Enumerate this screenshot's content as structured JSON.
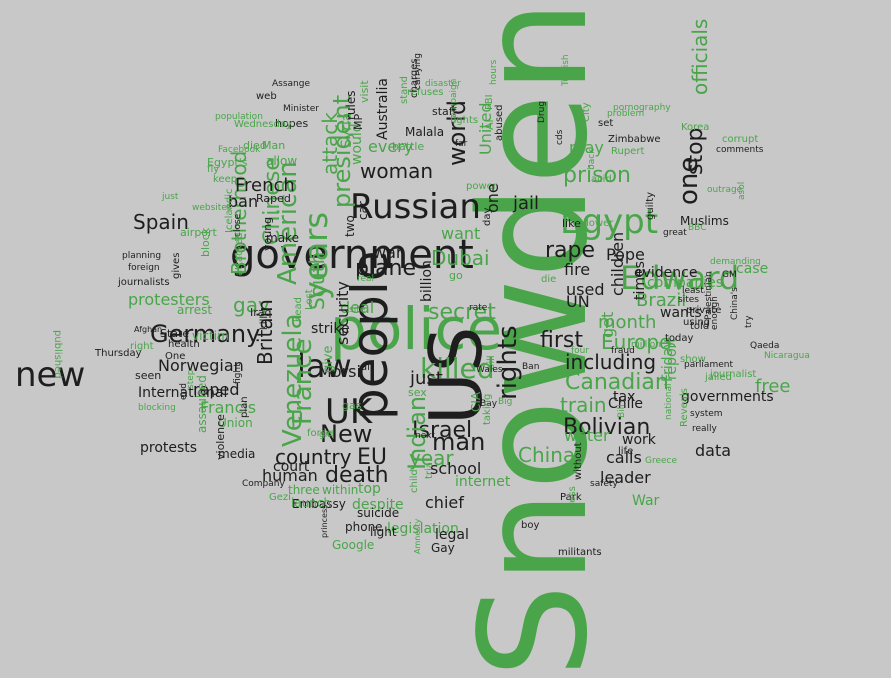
{
  "palette": {
    "background": "#c8c8c8",
    "dark": "#1e1e1e",
    "green": "#4aa54a"
  },
  "words": [
    {
      "t": "Snowden",
      "c": "g"
    },
    {
      "t": "police",
      "c": "g"
    },
    {
      "t": "US",
      "c": "d"
    },
    {
      "t": "people",
      "c": "d"
    },
    {
      "t": "government",
      "c": "d"
    },
    {
      "t": "Edward",
      "c": "g"
    },
    {
      "t": "Egypt",
      "c": "g"
    },
    {
      "t": "Russian",
      "c": "d"
    },
    {
      "t": "new",
      "c": "d"
    },
    {
      "t": "UK",
      "c": "d"
    },
    {
      "t": "years",
      "c": "g"
    },
    {
      "t": "law",
      "c": "d"
    },
    {
      "t": "killed",
      "c": "g"
    },
    {
      "t": "rights",
      "c": "d"
    },
    {
      "t": "Germany",
      "c": "d"
    },
    {
      "t": "New",
      "c": "d"
    },
    {
      "t": "man",
      "c": "d"
    },
    {
      "t": "Israel",
      "c": "d"
    },
    {
      "t": "France",
      "c": "g"
    },
    {
      "t": "American",
      "c": "g"
    },
    {
      "t": "Venezuela",
      "c": "g"
    },
    {
      "t": "Bolivian",
      "c": "d"
    },
    {
      "t": "Canadian",
      "c": "g"
    },
    {
      "t": "prison",
      "c": "g"
    },
    {
      "t": "one",
      "c": "d"
    },
    {
      "t": "China",
      "c": "g"
    },
    {
      "t": "including",
      "c": "d"
    },
    {
      "t": "secret",
      "c": "g"
    },
    {
      "t": "president",
      "c": "g"
    },
    {
      "t": "world",
      "c": "d"
    },
    {
      "t": "woman",
      "c": "d"
    },
    {
      "t": "plane",
      "c": "d"
    },
    {
      "t": "rape",
      "c": "d"
    },
    {
      "t": "first",
      "c": "d"
    },
    {
      "t": "officials",
      "c": "g"
    },
    {
      "t": "death",
      "c": "d"
    },
    {
      "t": "EU",
      "c": "d"
    },
    {
      "t": "country",
      "c": "d"
    },
    {
      "t": "train",
      "c": "g"
    },
    {
      "t": "Europe",
      "c": "g"
    },
    {
      "t": "Dubai",
      "c": "g"
    },
    {
      "t": "gay",
      "c": "g"
    },
    {
      "t": "Brotherhood",
      "c": "g"
    },
    {
      "t": "Indian",
      "c": "g"
    },
    {
      "t": "stop",
      "c": "d"
    },
    {
      "t": "jail",
      "c": "d"
    },
    {
      "t": "Chinese",
      "c": "g"
    },
    {
      "t": "Spain",
      "c": "d"
    },
    {
      "t": "French",
      "c": "d"
    },
    {
      "t": "year",
      "c": "g"
    },
    {
      "t": "month",
      "c": "g"
    },
    {
      "t": "just",
      "c": "d"
    },
    {
      "t": "Brazil",
      "c": "g"
    },
    {
      "t": "free",
      "c": "g"
    },
    {
      "t": "data",
      "c": "d"
    },
    {
      "t": "leader",
      "c": "d"
    },
    {
      "t": "protesters",
      "c": "g"
    },
    {
      "t": "Norwegian",
      "c": "d"
    },
    {
      "t": "South",
      "c": "g"
    },
    {
      "t": "Britain",
      "c": "d"
    },
    {
      "t": "Morsi",
      "c": "d"
    },
    {
      "t": "school",
      "c": "d"
    },
    {
      "t": "UN",
      "c": "d"
    },
    {
      "t": "fire",
      "c": "d"
    },
    {
      "t": "used",
      "c": "d"
    },
    {
      "t": "Pope",
      "c": "d"
    },
    {
      "t": "water",
      "c": "g"
    },
    {
      "t": "calls",
      "c": "d"
    },
    {
      "t": "War",
      "c": "g"
    },
    {
      "t": "chief",
      "c": "d"
    },
    {
      "t": "internet",
      "c": "g"
    },
    {
      "t": "human",
      "c": "d"
    },
    {
      "t": "deal",
      "c": "g"
    },
    {
      "t": "war",
      "c": "d"
    },
    {
      "t": "attack",
      "c": "g"
    },
    {
      "t": "security",
      "c": "d"
    },
    {
      "t": "every",
      "c": "g"
    },
    {
      "t": "may",
      "c": "g"
    },
    {
      "t": "United",
      "c": "g"
    },
    {
      "t": "billion",
      "c": "d"
    },
    {
      "t": "want",
      "c": "g"
    },
    {
      "t": "get",
      "c": "g"
    },
    {
      "t": "Francis",
      "c": "g"
    },
    {
      "t": "raped",
      "c": "d"
    },
    {
      "t": "ban",
      "c": "d"
    },
    {
      "t": "strike",
      "c": "d"
    },
    {
      "t": "top",
      "c": "g"
    },
    {
      "t": "times",
      "c": "d"
    },
    {
      "t": "children",
      "c": "d"
    },
    {
      "t": "legislation",
      "c": "g"
    },
    {
      "t": "report",
      "c": "g"
    },
    {
      "t": "would",
      "c": "g"
    },
    {
      "t": "Australia",
      "c": "d"
    },
    {
      "t": "Syria",
      "c": "g"
    },
    {
      "t": "court",
      "c": "d"
    },
    {
      "t": "wants",
      "c": "d"
    },
    {
      "t": "companies",
      "c": "g"
    },
    {
      "t": "tax",
      "c": "d"
    },
    {
      "t": "work",
      "c": "d"
    },
    {
      "t": "Friday",
      "c": "g"
    },
    {
      "t": "evidence",
      "c": "d"
    },
    {
      "t": "case",
      "c": "g"
    },
    {
      "t": "governments",
      "c": "d"
    },
    {
      "t": "Muslims",
      "c": "d"
    },
    {
      "t": "Chile",
      "c": "d"
    },
    {
      "t": "protests",
      "c": "d"
    },
    {
      "t": "International",
      "c": "d"
    },
    {
      "t": "media",
      "c": "d"
    },
    {
      "t": "legal",
      "c": "d"
    },
    {
      "t": "despite",
      "c": "g"
    },
    {
      "t": "within",
      "c": "g"
    },
    {
      "t": "three",
      "c": "g"
    },
    {
      "t": "Embassy",
      "c": "d"
    },
    {
      "t": "launch",
      "c": "g"
    },
    {
      "t": "Gay",
      "c": "d"
    },
    {
      "t": "phone",
      "c": "d"
    },
    {
      "t": "suicide",
      "c": "d"
    },
    {
      "t": "Google",
      "c": "g"
    },
    {
      "t": "light",
      "c": "d"
    },
    {
      "t": "boy",
      "c": "d"
    },
    {
      "t": "militants",
      "c": "d"
    },
    {
      "t": "Park",
      "c": "d"
    },
    {
      "t": "without",
      "c": "d"
    },
    {
      "t": "safety",
      "c": "d"
    },
    {
      "t": "Greece",
      "c": "g"
    },
    {
      "t": "life",
      "c": "d"
    },
    {
      "t": "arrest",
      "c": "g"
    },
    {
      "t": "victim",
      "c": "g"
    },
    {
      "t": "State",
      "c": "d"
    },
    {
      "t": "health",
      "c": "d"
    },
    {
      "t": "right",
      "c": "g"
    },
    {
      "t": "One",
      "c": "d"
    },
    {
      "t": "seen",
      "c": "d"
    },
    {
      "t": "Union",
      "c": "g"
    },
    {
      "t": "Thursday",
      "c": "d"
    },
    {
      "t": "published",
      "c": "g"
    },
    {
      "t": "journalists",
      "c": "d"
    },
    {
      "t": "planning",
      "c": "d"
    },
    {
      "t": "foreign",
      "c": "d"
    },
    {
      "t": "gives",
      "c": "d"
    },
    {
      "t": "block",
      "c": "g"
    },
    {
      "t": "airport",
      "c": "g"
    },
    {
      "t": "just",
      "c": "g"
    },
    {
      "t": "websites",
      "c": "g"
    },
    {
      "t": "keep",
      "c": "g"
    },
    {
      "t": "fly",
      "c": "g"
    },
    {
      "t": "Facebook",
      "c": "g"
    },
    {
      "t": "Egypt's",
      "c": "g"
    },
    {
      "t": "died",
      "c": "g"
    },
    {
      "t": "allow",
      "c": "g"
    },
    {
      "t": "Raped",
      "c": "d"
    },
    {
      "t": "Icelandic",
      "c": "g"
    },
    {
      "t": "Man",
      "c": "g"
    },
    {
      "t": "hopes",
      "c": "d"
    },
    {
      "t": "Wednesday",
      "c": "g"
    },
    {
      "t": "population",
      "c": "g"
    },
    {
      "t": "web",
      "c": "d"
    },
    {
      "t": "Minister",
      "c": "d"
    },
    {
      "t": "Assange",
      "c": "d"
    },
    {
      "t": "rules",
      "c": "d"
    },
    {
      "t": "visit",
      "c": "g"
    },
    {
      "t": "MP",
      "c": "d"
    },
    {
      "t": "Malala",
      "c": "d"
    },
    {
      "t": "refuses",
      "c": "g"
    },
    {
      "t": "battle",
      "c": "g"
    },
    {
      "t": "stand",
      "c": "g"
    },
    {
      "t": "charges",
      "c": "d"
    },
    {
      "t": "carrying",
      "c": "d"
    },
    {
      "t": "disaster",
      "c": "g"
    },
    {
      "t": "staff",
      "c": "d"
    },
    {
      "t": "campaign",
      "c": "g"
    },
    {
      "t": "fights",
      "c": "g"
    },
    {
      "t": "hours",
      "c": "g"
    },
    {
      "t": "FBI",
      "c": "g"
    },
    {
      "t": "abused",
      "c": "d"
    },
    {
      "t": "Drug",
      "c": "d"
    },
    {
      "t": "Turkish",
      "c": "g"
    },
    {
      "t": "City",
      "c": "g"
    },
    {
      "t": "set",
      "c": "d"
    },
    {
      "t": "pornography",
      "c": "g"
    },
    {
      "t": "problem",
      "c": "g"
    },
    {
      "t": "Korea",
      "c": "g"
    },
    {
      "t": "corrupt",
      "c": "g"
    },
    {
      "t": "comments",
      "c": "d"
    },
    {
      "t": "Zimbabwe",
      "c": "d"
    },
    {
      "t": "Rupert",
      "c": "g"
    },
    {
      "t": "acid",
      "c": "g"
    },
    {
      "t": "outrage",
      "c": "g"
    },
    {
      "t": "asol",
      "c": "g"
    },
    {
      "t": "cds",
      "c": "d"
    },
    {
      "t": "back",
      "c": "g"
    },
    {
      "t": "power",
      "c": "g"
    },
    {
      "t": "day",
      "c": "d"
    },
    {
      "t": "like",
      "c": "d"
    },
    {
      "t": "lower",
      "c": "g"
    },
    {
      "t": "guilty",
      "c": "d"
    },
    {
      "t": "BBC",
      "c": "g"
    },
    {
      "t": "great",
      "c": "d"
    },
    {
      "t": "demanding",
      "c": "g"
    },
    {
      "t": "GM",
      "c": "d"
    },
    {
      "t": "die",
      "c": "g"
    },
    {
      "t": "dies",
      "c": "g"
    },
    {
      "t": "four",
      "c": "g"
    },
    {
      "t": "fraud",
      "c": "d"
    },
    {
      "t": "million",
      "c": "g"
    },
    {
      "t": "told",
      "c": "d"
    },
    {
      "t": "today",
      "c": "d"
    },
    {
      "t": "using",
      "c": "d"
    },
    {
      "t": "least",
      "c": "d"
    },
    {
      "t": "sites",
      "c": "d"
    },
    {
      "t": "private",
      "c": "d"
    },
    {
      "t": "Palestinian",
      "c": "d"
    },
    {
      "t": "enough",
      "c": "d"
    },
    {
      "t": "China's",
      "c": "d"
    },
    {
      "t": "try",
      "c": "d"
    },
    {
      "t": "Qaeda",
      "c": "d"
    },
    {
      "t": "Nicaragua",
      "c": "g"
    },
    {
      "t": "show",
      "c": "g"
    },
    {
      "t": "parliament",
      "c": "d"
    },
    {
      "t": "jailed",
      "c": "g"
    },
    {
      "t": "journalist",
      "c": "g"
    },
    {
      "t": "Reveals",
      "c": "g"
    },
    {
      "t": "system",
      "c": "d"
    },
    {
      "t": "really",
      "c": "d"
    },
    {
      "t": "national",
      "c": "g"
    },
    {
      "t": "Bill",
      "c": "g"
    },
    {
      "t": "Ban",
      "c": "d"
    },
    {
      "t": "Bay",
      "c": "d"
    },
    {
      "t": "Big",
      "c": "g"
    },
    {
      "t": "CIA",
      "c": "g"
    },
    {
      "t": "taking",
      "c": "g"
    },
    {
      "t": "next",
      "c": "d"
    },
    {
      "t": "bill",
      "c": "g"
    },
    {
      "t": "Wales",
      "c": "d"
    },
    {
      "t": "rate",
      "c": "d"
    },
    {
      "t": "far",
      "c": "d"
    },
    {
      "t": "go",
      "c": "g"
    },
    {
      "t": "air",
      "c": "d"
    },
    {
      "t": "sex",
      "c": "g"
    },
    {
      "t": "gas",
      "c": "g"
    },
    {
      "t": "real",
      "c": "g"
    },
    {
      "t": "site",
      "c": "g"
    },
    {
      "t": "give",
      "c": "g"
    },
    {
      "t": "kill",
      "c": "d"
    },
    {
      "t": "two",
      "c": "d"
    },
    {
      "t": "car",
      "c": "d"
    },
    {
      "t": "young",
      "c": "d"
    },
    {
      "t": "make",
      "c": "d"
    },
    {
      "t": "close",
      "c": "d"
    },
    {
      "t": "attacked",
      "c": "g"
    },
    {
      "t": "Iraq",
      "c": "d"
    },
    {
      "t": "head",
      "c": "g"
    },
    {
      "t": "Lost",
      "c": "g"
    },
    {
      "t": "plan",
      "c": "d"
    },
    {
      "t": "violence",
      "c": "d"
    },
    {
      "t": "assaulted",
      "c": "g"
    },
    {
      "t": "end",
      "c": "d"
    },
    {
      "t": "blocking",
      "c": "g"
    },
    {
      "t": "fight",
      "c": "d"
    },
    {
      "t": "step",
      "c": "g"
    },
    {
      "t": "Afghan",
      "c": "d"
    },
    {
      "t": "Company",
      "c": "d"
    },
    {
      "t": "Gezi",
      "c": "g"
    },
    {
      "t": "force",
      "c": "g"
    },
    {
      "t": "girl",
      "c": "g"
    },
    {
      "t": "princess",
      "c": "d"
    },
    {
      "t": "Amnesty",
      "c": "g"
    },
    {
      "t": "trial",
      "c": "g"
    },
    {
      "t": "child",
      "c": "g"
    },
    {
      "t": "press",
      "c": "g"
    },
    {
      "t": "Al",
      "c": "g"
    },
    {
      "t": "one",
      "c": "d"
    }
  ]
}
